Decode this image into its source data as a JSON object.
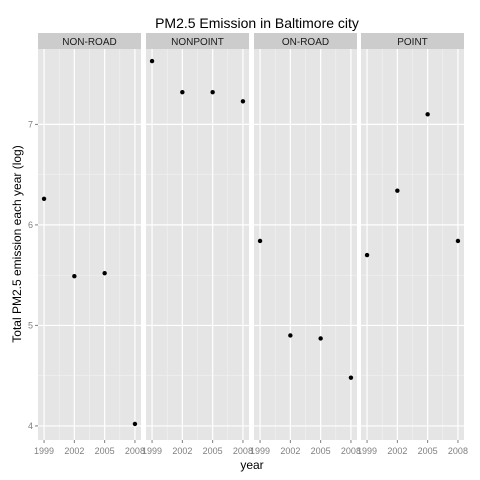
{
  "chart_data": {
    "type": "scatter",
    "title": "PM2.5 Emission in Baltimore city",
    "xlabel": "year",
    "ylabel": "Total PM2.5 emission each year (log)",
    "x_ticks": [
      "1999",
      "2002",
      "2005",
      "2008"
    ],
    "y_ticks": [
      "4",
      "5",
      "6",
      "7"
    ],
    "ylim": [
      3.86,
      7.75
    ],
    "xlim": [
      1998.4,
      2008.6
    ],
    "grid": true,
    "legend": "none",
    "colors": {
      "panel_bg": "#e5e5e5",
      "strip_bg": "#cccccc",
      "grid": "#ffffff",
      "point": "#000000"
    },
    "panels": [
      {
        "label": "NON-ROAD",
        "points": [
          {
            "x": 1999,
            "y": 6.26
          },
          {
            "x": 2002,
            "y": 5.49
          },
          {
            "x": 2005,
            "y": 5.52
          },
          {
            "x": 2008,
            "y": 4.02
          }
        ]
      },
      {
        "label": "NONPOINT",
        "points": [
          {
            "x": 1999,
            "y": 7.63
          },
          {
            "x": 2002,
            "y": 7.32
          },
          {
            "x": 2005,
            "y": 7.32
          },
          {
            "x": 2008,
            "y": 7.23
          }
        ]
      },
      {
        "label": "ON-ROAD",
        "points": [
          {
            "x": 1999,
            "y": 5.84
          },
          {
            "x": 2002,
            "y": 4.9
          },
          {
            "x": 2005,
            "y": 4.87
          },
          {
            "x": 2008,
            "y": 4.48
          }
        ]
      },
      {
        "label": "POINT",
        "points": [
          {
            "x": 1999,
            "y": 5.7
          },
          {
            "x": 2002,
            "y": 6.34
          },
          {
            "x": 2005,
            "y": 7.1
          },
          {
            "x": 2008,
            "y": 5.84
          }
        ]
      }
    ]
  }
}
